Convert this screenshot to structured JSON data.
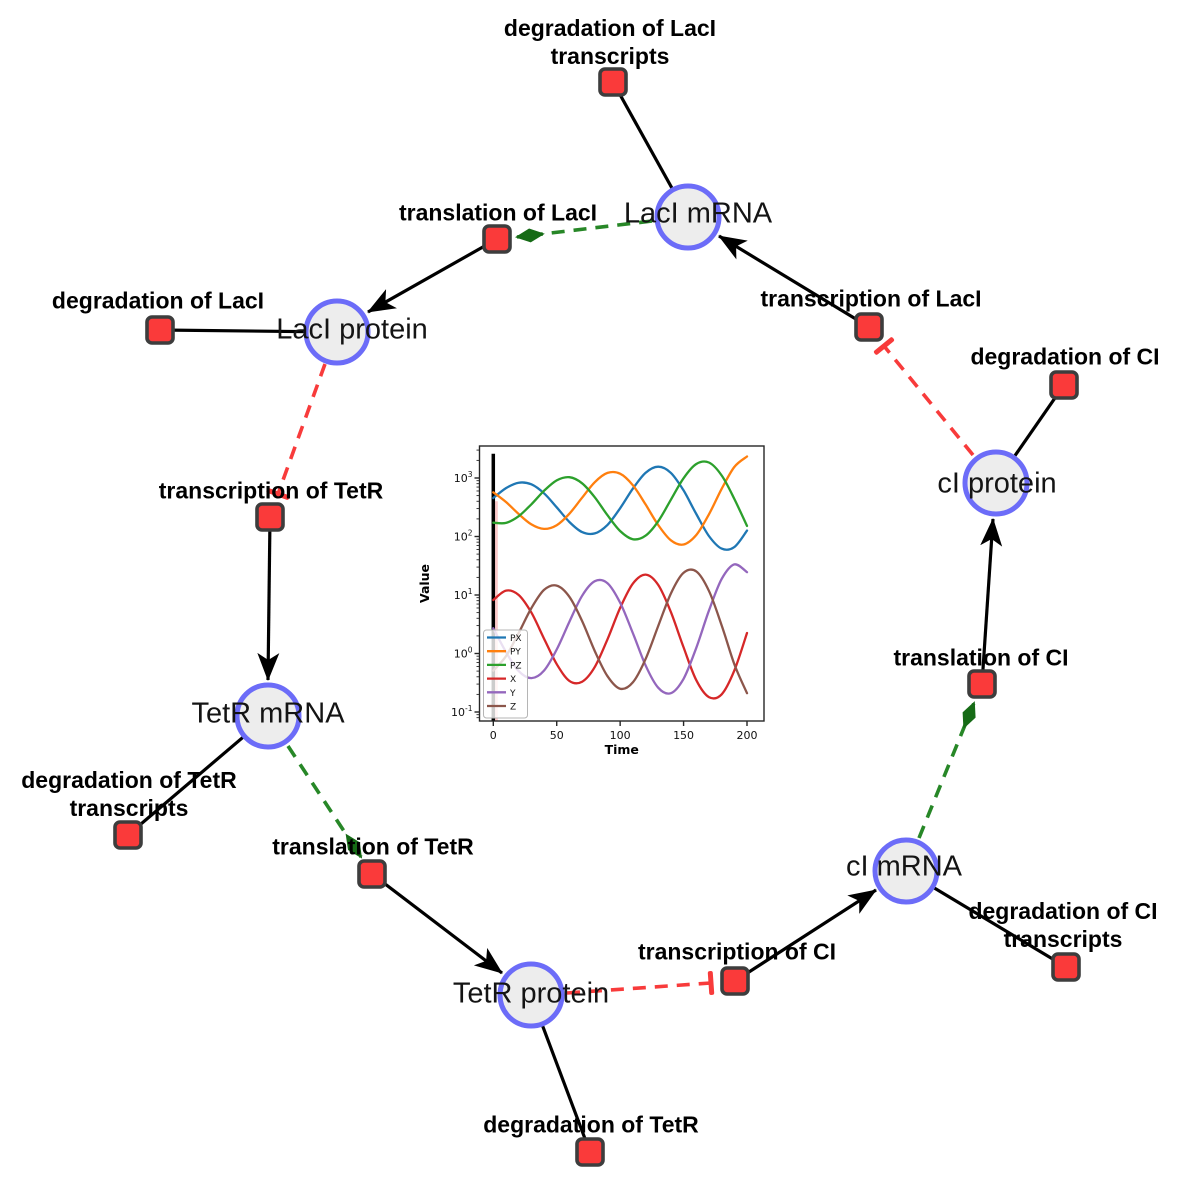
{
  "nodes": {
    "species": [
      {
        "label": "LacI mRNA"
      },
      {
        "label": "LacI protein"
      },
      {
        "label": "TetR mRNA"
      },
      {
        "label": "TetR protein"
      },
      {
        "label": "cI mRNA"
      },
      {
        "label": "cI protein"
      }
    ],
    "reactions": [
      {
        "label": "degradation of LacI transcripts"
      },
      {
        "label": "translation of LacI"
      },
      {
        "label": "transcription of LacI"
      },
      {
        "label": "degradation of LacI"
      },
      {
        "label": "degradation of CI"
      },
      {
        "label": "transcription of TetR"
      },
      {
        "label": "translation of CI"
      },
      {
        "label": "degradation of TetR transcripts"
      },
      {
        "label": "translation of TetR"
      },
      {
        "label": "transcription of CI"
      },
      {
        "label": "degradation of CI transcripts"
      },
      {
        "label": "degradation of TetR"
      }
    ]
  },
  "colors": {
    "species_fill": "#ededed",
    "species_border": "#6c6cf8",
    "reaction_fill": "#fa3a3a",
    "reaction_border": "#3d3d3d",
    "production_edge": "#000000",
    "stimulation_edge": "#278727",
    "stimulation_arrow": "#166b16",
    "inhibition_edge": "#f83b3b",
    "label_color": "#000000"
  },
  "chart_data": {
    "type": "line",
    "xlabel": "Time",
    "ylabel": "Value",
    "yscale": "log",
    "grid": false,
    "legend_position": "lower left",
    "x_ticks": [
      0,
      50,
      100,
      150,
      200
    ],
    "y_tick_exponents": [
      3,
      2,
      1,
      0,
      -1
    ],
    "xlim": [
      -11,
      213
    ],
    "ylim": [
      0.07,
      3550
    ],
    "initial_spike": {
      "t": 0,
      "from": 0.07,
      "to": 2600,
      "color": "#000000"
    },
    "x": [
      0,
      10,
      20,
      30,
      40,
      50,
      60,
      70,
      80,
      90,
      100,
      110,
      120,
      130,
      140,
      150,
      160,
      170,
      180,
      190,
      200
    ],
    "series": [
      {
        "name": "PX",
        "color": "#1f77b4",
        "values": [
          456,
          671,
          830,
          780,
          548,
          315,
          177,
          119,
          113,
          158,
          304,
          656,
          1222,
          1563,
          1222,
          613,
          242,
          102,
          62,
          66,
          126
        ]
      },
      {
        "name": "PY",
        "color": "#ff7f0e",
        "values": [
          570,
          389,
          242,
          161,
          135,
          156,
          245,
          461,
          849,
          1222,
          1186,
          753,
          355,
          157,
          86,
          73,
          106,
          239,
          650,
          1541,
          2333
        ]
      },
      {
        "name": "PZ",
        "color": "#2ca02c",
        "values": [
          172,
          171,
          222,
          355,
          604,
          910,
          1030,
          813,
          468,
          231,
          124,
          90,
          103,
          182,
          425,
          993,
          1734,
          1837,
          1109,
          440,
          152
        ]
      },
      {
        "name": "X",
        "color": "#d62728",
        "values": [
          8.2,
          11.9,
          10.0,
          5.0,
          1.8,
          0.66,
          0.34,
          0.33,
          0.59,
          1.75,
          6.0,
          15.6,
          22.3,
          14.9,
          5.1,
          1.27,
          0.35,
          0.18,
          0.2,
          0.51,
          2.24
        ]
      },
      {
        "name": "Y",
        "color": "#9467bd",
        "values": [
          2.7,
          1.06,
          0.5,
          0.38,
          0.51,
          1.17,
          3.5,
          9.7,
          17.2,
          15.9,
          7.4,
          2.24,
          0.63,
          0.26,
          0.21,
          0.37,
          1.25,
          5.4,
          18.7,
          33.3,
          24.5
        ]
      },
      {
        "name": "Z",
        "color": "#8c564b",
        "values": [
          0.51,
          0.9,
          2.24,
          5.96,
          12.2,
          14.5,
          9.3,
          3.6,
          1.1,
          0.41,
          0.25,
          0.32,
          0.8,
          2.95,
          10.6,
          24.0,
          25.3,
          11.8,
          3.05,
          0.66,
          0.21
        ]
      }
    ]
  }
}
